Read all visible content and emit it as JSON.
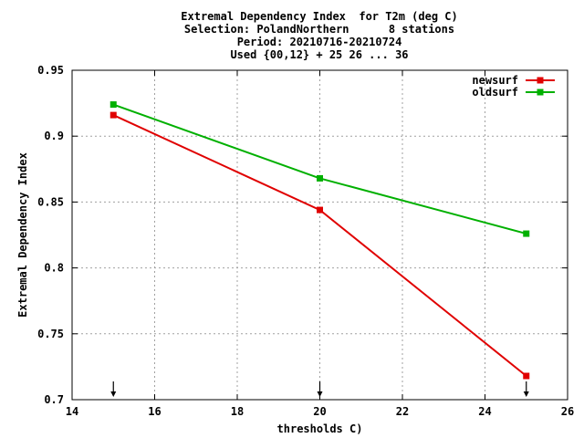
{
  "chart_data": {
    "type": "line",
    "title_lines": [
      "Extremal Dependency Index  for T2m (deg C)",
      "Selection: PolandNorthern      8 stations",
      "Period: 20210716-20210724",
      "Used {00,12} + 25 26 ... 36"
    ],
    "xlabel": "thresholds C)",
    "ylabel": "Extremal Dependency Index",
    "xlim": [
      14,
      26
    ],
    "ylim": [
      0.7,
      0.95
    ],
    "x_ticks": [
      14,
      16,
      18,
      20,
      22,
      24,
      26
    ],
    "x_tick_labels": [
      "14",
      "16",
      "18",
      "20",
      "22",
      "24",
      "26"
    ],
    "y_ticks": [
      0.7,
      0.75,
      0.8,
      0.85,
      0.9,
      0.95
    ],
    "y_tick_labels": [
      "0.7",
      "0.75",
      "0.8",
      "0.85",
      "0.9",
      "0.95"
    ],
    "grid": true,
    "legend_position": "top-right",
    "series": [
      {
        "name": "newsurf",
        "color": "#e00000",
        "x": [
          15,
          20,
          25
        ],
        "values": [
          0.916,
          0.844,
          0.718
        ]
      },
      {
        "name": "oldsurf",
        "color": "#00b000",
        "x": [
          15,
          20,
          25
        ],
        "values": [
          0.924,
          0.868,
          0.826
        ]
      }
    ],
    "arrow_markers_x": [
      15,
      20,
      25
    ]
  }
}
